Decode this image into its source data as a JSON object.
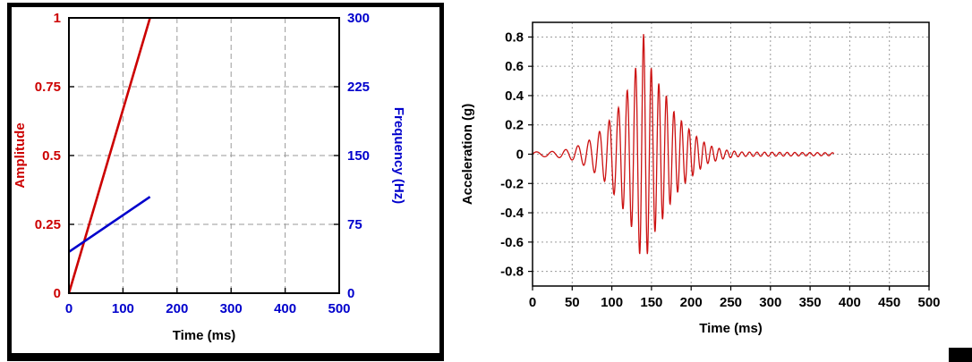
{
  "page": {
    "background": "#ffffff"
  },
  "left_panel": {
    "border_color": "#000000"
  },
  "chart_data": [
    {
      "id": "sweep-profile",
      "type": "line",
      "title": "",
      "xlabel": "Time (ms)",
      "xlim": [
        0,
        500
      ],
      "xticks": [
        0,
        100,
        200,
        300,
        400,
        500
      ],
      "xtick_color": "#0000cc",
      "grid": "dashed",
      "axes": {
        "left": {
          "label": "Amplitude",
          "color": "#cc0000",
          "lim": [
            0,
            1
          ],
          "ticks": [
            0,
            0.25,
            0.5,
            0.75,
            1
          ]
        },
        "right": {
          "label": "Frequency (Hz)",
          "color": "#0000cc",
          "lim": [
            0,
            300
          ],
          "ticks": [
            0,
            75,
            150,
            225,
            300
          ]
        }
      },
      "series": [
        {
          "name": "amplitude-ramp",
          "axis": "left",
          "color": "#cc0000",
          "points": [
            [
              0,
              0
            ],
            [
              150,
              1
            ]
          ]
        },
        {
          "name": "frequency-ramp",
          "axis": "right",
          "color": "#0000cc",
          "points": [
            [
              0,
              45
            ],
            [
              150,
              105
            ]
          ]
        }
      ]
    },
    {
      "id": "acceleration-waveform",
      "type": "line",
      "xlabel": "Time (ms)",
      "ylabel": "Acceleration (g)",
      "xlim": [
        0,
        500
      ],
      "xticks": [
        0,
        50,
        100,
        150,
        200,
        250,
        300,
        350,
        400,
        450,
        500
      ],
      "ylim": [
        -0.9,
        0.9
      ],
      "yticks": [
        -0.8,
        -0.6,
        -0.4,
        -0.2,
        0,
        0.2,
        0.4,
        0.6,
        0.8
      ],
      "grid": "dotted",
      "series": [
        {
          "name": "acceleration",
          "color": "#cc1111",
          "waveform": {
            "t_start_ms": 0,
            "t_end_ms": 380,
            "dt_ms": 0.4,
            "freq_start_hz": 45,
            "freq_end_hz": 105,
            "sweep_end_ms": 150,
            "peak_g": 0.82,
            "envelope_points": [
              [
                0,
                0.015
              ],
              [
                30,
                0.02
              ],
              [
                50,
                0.04
              ],
              [
                70,
                0.09
              ],
              [
                90,
                0.18
              ],
              [
                110,
                0.33
              ],
              [
                125,
                0.5
              ],
              [
                135,
                0.68
              ],
              [
                140,
                0.82
              ],
              [
                147,
                0.62
              ],
              [
                157,
                0.5
              ],
              [
                167,
                0.42
              ],
              [
                177,
                0.3
              ],
              [
                192,
                0.2
              ],
              [
                207,
                0.12
              ],
              [
                222,
                0.06
              ],
              [
                242,
                0.03
              ],
              [
                262,
                0.015
              ],
              [
                380,
                0.01
              ]
            ]
          }
        }
      ]
    }
  ]
}
